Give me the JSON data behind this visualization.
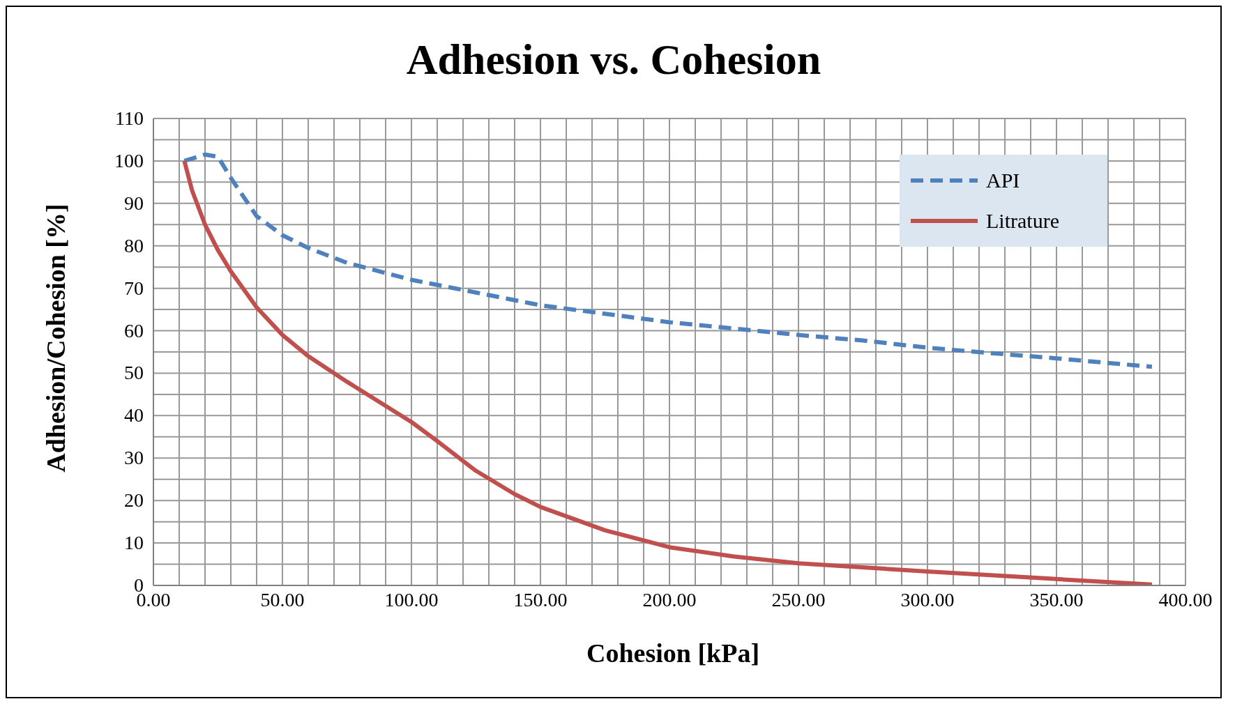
{
  "chart_data": {
    "type": "line",
    "title": "Adhesion vs. Cohesion",
    "xlabel": "Cohesion [kPa]",
    "ylabel": "Adhesion/Cohesion [%]",
    "xlim": [
      0,
      400
    ],
    "ylim": [
      0,
      110
    ],
    "xticks": [
      {
        "value": 0,
        "label": "0.00"
      },
      {
        "value": 10,
        "label": null
      },
      {
        "value": 20,
        "label": null
      },
      {
        "value": 30,
        "label": null
      },
      {
        "value": 40,
        "label": null
      },
      {
        "value": 50,
        "label": "50.00"
      },
      {
        "value": 60,
        "label": null
      },
      {
        "value": 70,
        "label": null
      },
      {
        "value": 80,
        "label": null
      },
      {
        "value": 90,
        "label": null
      },
      {
        "value": 100,
        "label": "100.00"
      },
      {
        "value": 110,
        "label": null
      },
      {
        "value": 120,
        "label": null
      },
      {
        "value": 130,
        "label": null
      },
      {
        "value": 140,
        "label": null
      },
      {
        "value": 150,
        "label": "150.00"
      },
      {
        "value": 160,
        "label": null
      },
      {
        "value": 170,
        "label": null
      },
      {
        "value": 180,
        "label": null
      },
      {
        "value": 190,
        "label": null
      },
      {
        "value": 200,
        "label": "200.00"
      },
      {
        "value": 210,
        "label": null
      },
      {
        "value": 220,
        "label": null
      },
      {
        "value": 230,
        "label": null
      },
      {
        "value": 240,
        "label": null
      },
      {
        "value": 250,
        "label": "250.00"
      },
      {
        "value": 260,
        "label": null
      },
      {
        "value": 270,
        "label": null
      },
      {
        "value": 280,
        "label": null
      },
      {
        "value": 290,
        "label": null
      },
      {
        "value": 300,
        "label": "300.00"
      },
      {
        "value": 310,
        "label": null
      },
      {
        "value": 320,
        "label": null
      },
      {
        "value": 330,
        "label": null
      },
      {
        "value": 340,
        "label": null
      },
      {
        "value": 350,
        "label": "350.00"
      },
      {
        "value": 360,
        "label": null
      },
      {
        "value": 370,
        "label": null
      },
      {
        "value": 380,
        "label": null
      },
      {
        "value": 390,
        "label": null
      },
      {
        "value": 400,
        "label": "400.00"
      }
    ],
    "yticks": [
      0,
      {
        "value": 5,
        "label": null
      },
      10,
      {
        "value": 15,
        "label": null
      },
      20,
      {
        "value": 25,
        "label": null
      },
      30,
      {
        "value": 35,
        "label": null
      },
      40,
      {
        "value": 45,
        "label": null
      },
      50,
      {
        "value": 55,
        "label": null
      },
      60,
      {
        "value": 65,
        "label": null
      },
      70,
      {
        "value": 75,
        "label": null
      },
      80,
      {
        "value": 85,
        "label": null
      },
      90,
      {
        "value": 95,
        "label": null
      },
      100,
      {
        "value": 105,
        "label": null
      },
      110
    ],
    "grid": true,
    "legend": "top right",
    "marker": "none",
    "series": [
      {
        "name": "API",
        "color": "#4f81bd",
        "line_style": "dashed",
        "x": [
          12,
          20,
          25,
          30,
          40,
          50,
          60,
          75,
          100,
          125,
          150,
          175,
          200,
          225,
          250,
          275,
          300,
          325,
          350,
          387
        ],
        "values": [
          100,
          101.5,
          101,
          96,
          87,
          82.5,
          79.5,
          76,
          72,
          69,
          66,
          64,
          62,
          60.5,
          59,
          57.7,
          56,
          54.7,
          53.5,
          51.5
        ]
      },
      {
        "name": "Litrature",
        "color": "#c0504d",
        "line_style": "solid",
        "x": [
          12,
          15,
          20,
          25,
          30,
          40,
          50,
          60,
          75,
          100,
          110,
          125,
          140,
          150,
          175,
          200,
          225,
          250,
          300,
          350,
          387
        ],
        "values": [
          100,
          93,
          85,
          79,
          74,
          65.5,
          59,
          54,
          48,
          38.5,
          34,
          27,
          21.5,
          18.5,
          13,
          9,
          6.8,
          5.2,
          3.3,
          1.5,
          0.2
        ]
      }
    ]
  }
}
